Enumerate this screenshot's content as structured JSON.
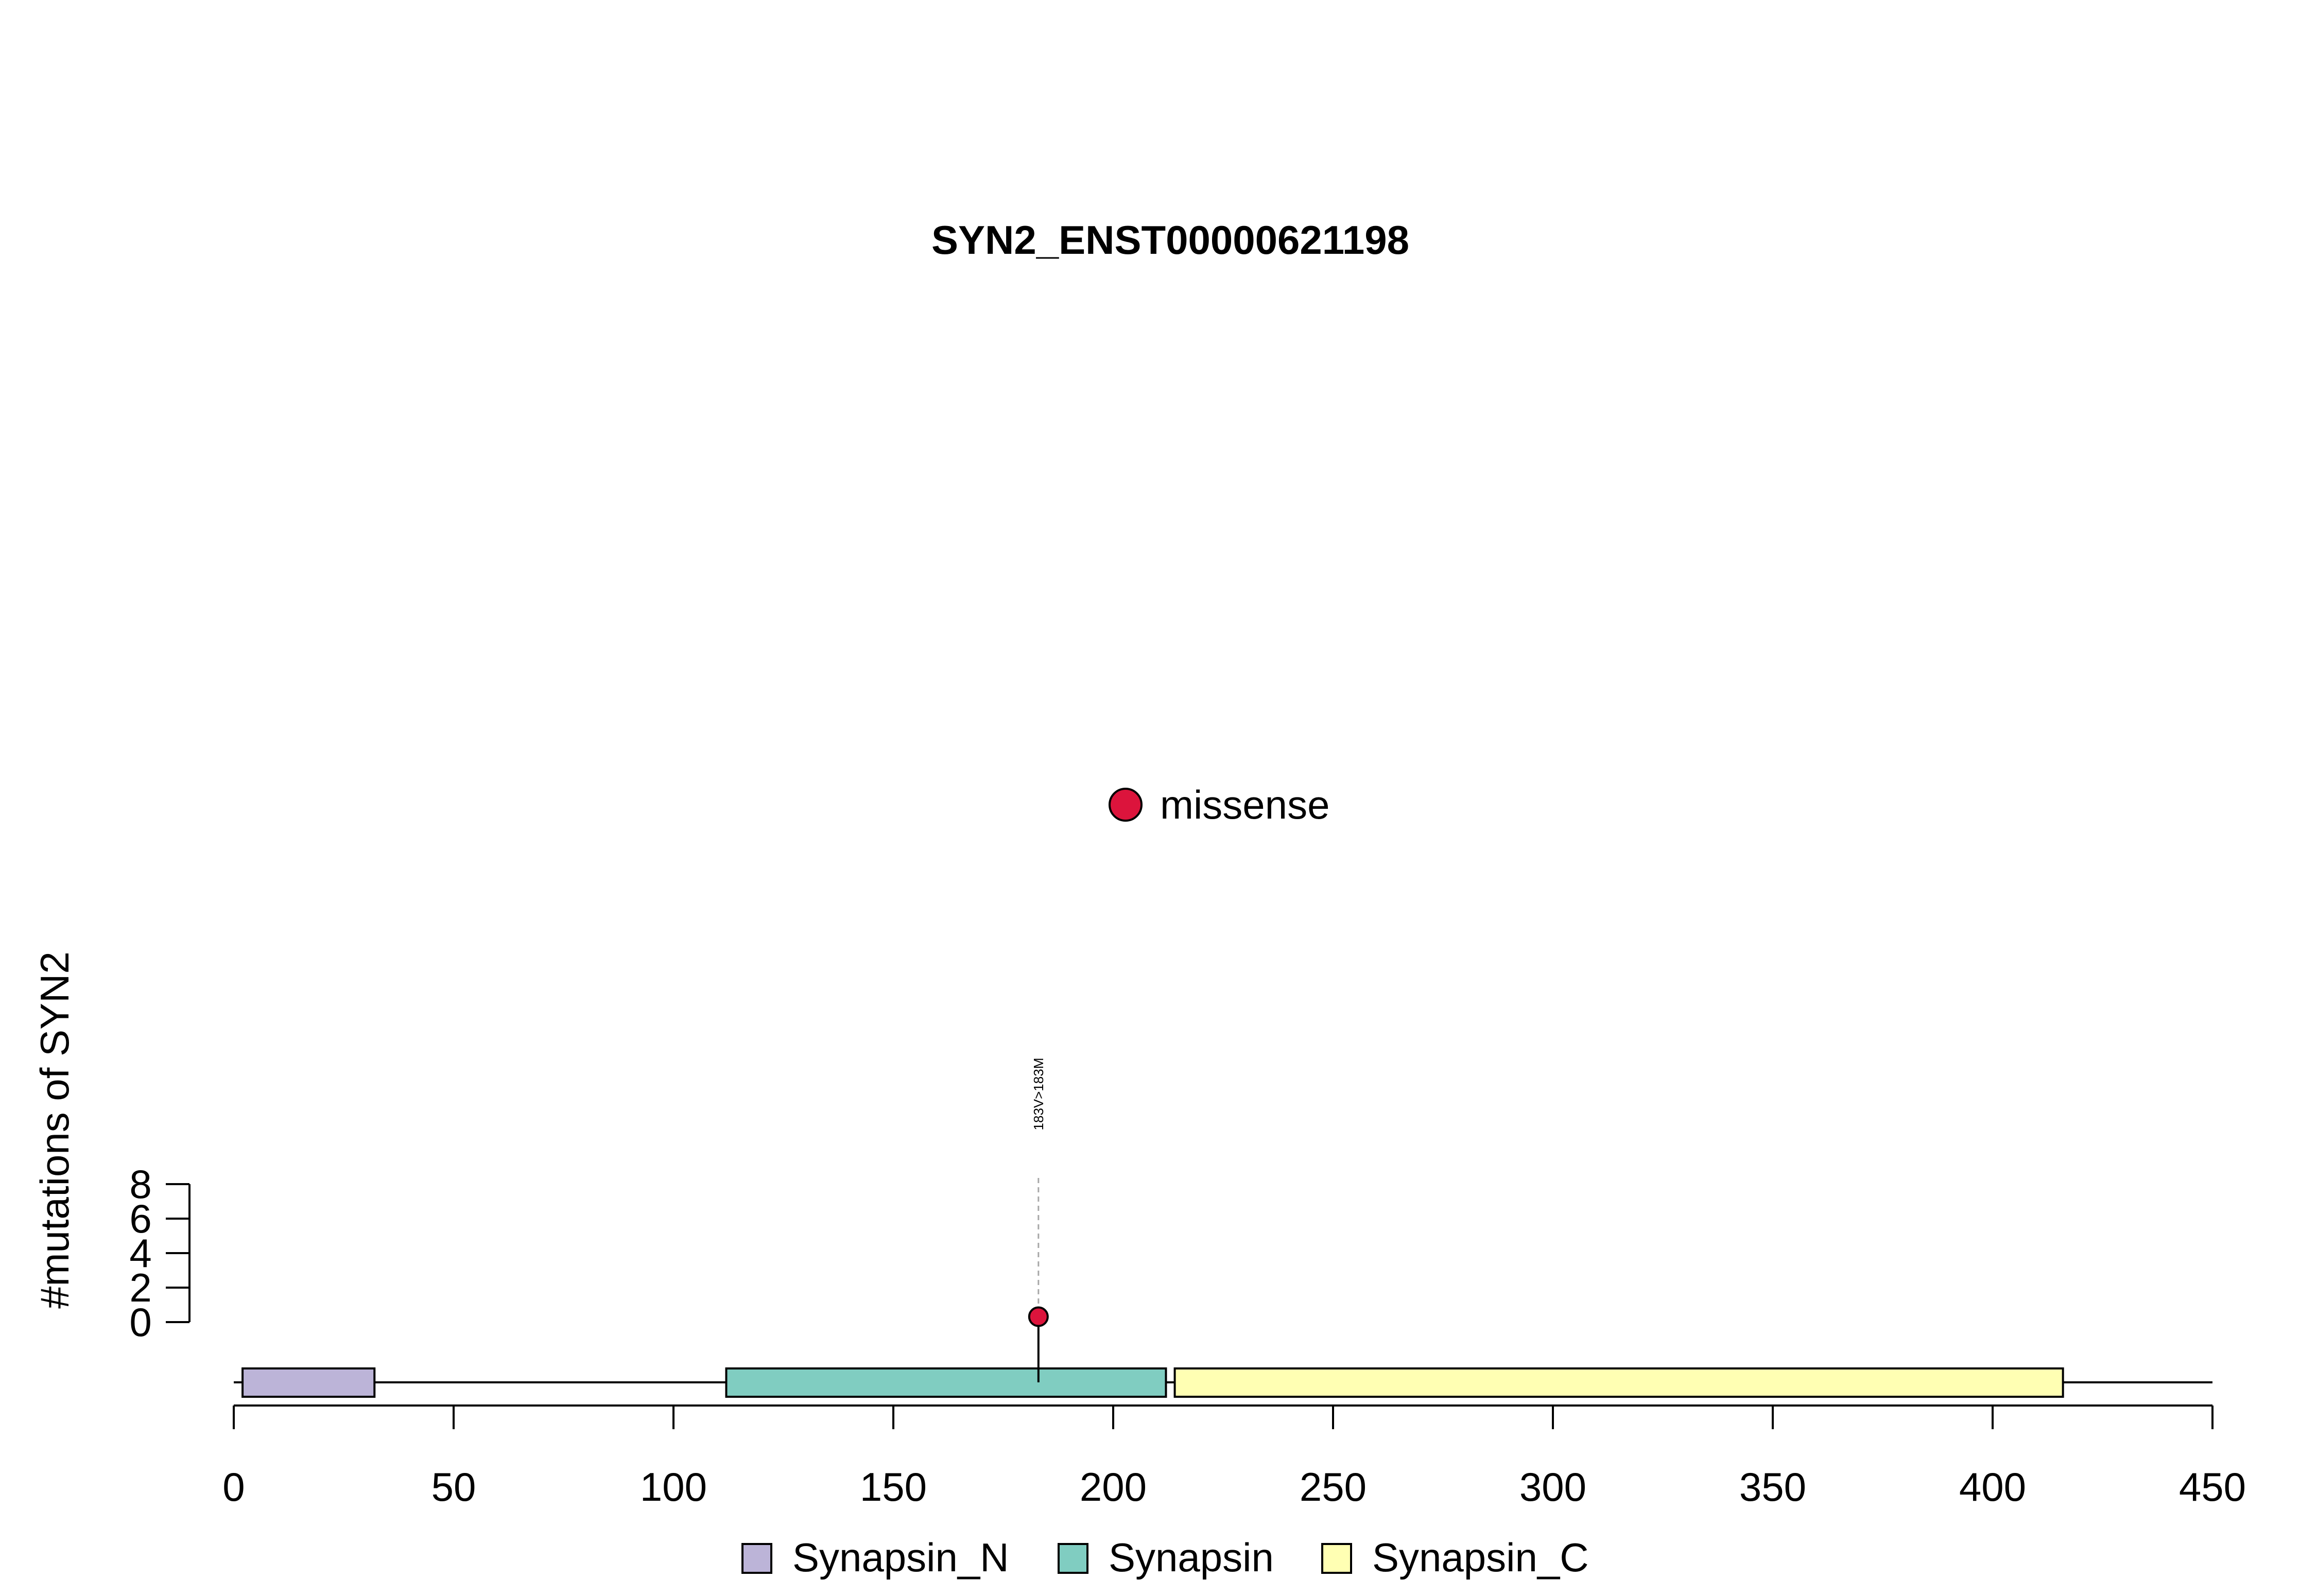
{
  "chart_data": {
    "type": "lollipop",
    "title": "SYN2_ENST00000621198",
    "ylabel": "#mutations of SYN2",
    "xlim": [
      0,
      450
    ],
    "ylim": [
      0,
      8
    ],
    "x_ticks": [
      0,
      50,
      100,
      150,
      200,
      250,
      300,
      350,
      400,
      450
    ],
    "y_ticks": [
      0,
      2,
      4,
      6,
      8
    ],
    "protein_length": 450,
    "domains": [
      {
        "name": "Synapsin_N",
        "start": 2,
        "end": 32,
        "color": "#bcb4d8"
      },
      {
        "name": "Synapsin",
        "start": 112,
        "end": 212,
        "color": "#80cdc1"
      },
      {
        "name": "Synapsin_C",
        "start": 214,
        "end": 416,
        "color": "#ffffb3"
      }
    ],
    "mutations": [
      {
        "position": 183,
        "count": 1,
        "label": "183V>183M",
        "type": "missense",
        "color": "#dc143c"
      }
    ],
    "mutation_legend": [
      {
        "label": "missense",
        "color": "#dc143c"
      }
    ],
    "domain_legend": [
      "Synapsin_N",
      "Synapsin",
      "Synapsin_C"
    ]
  }
}
